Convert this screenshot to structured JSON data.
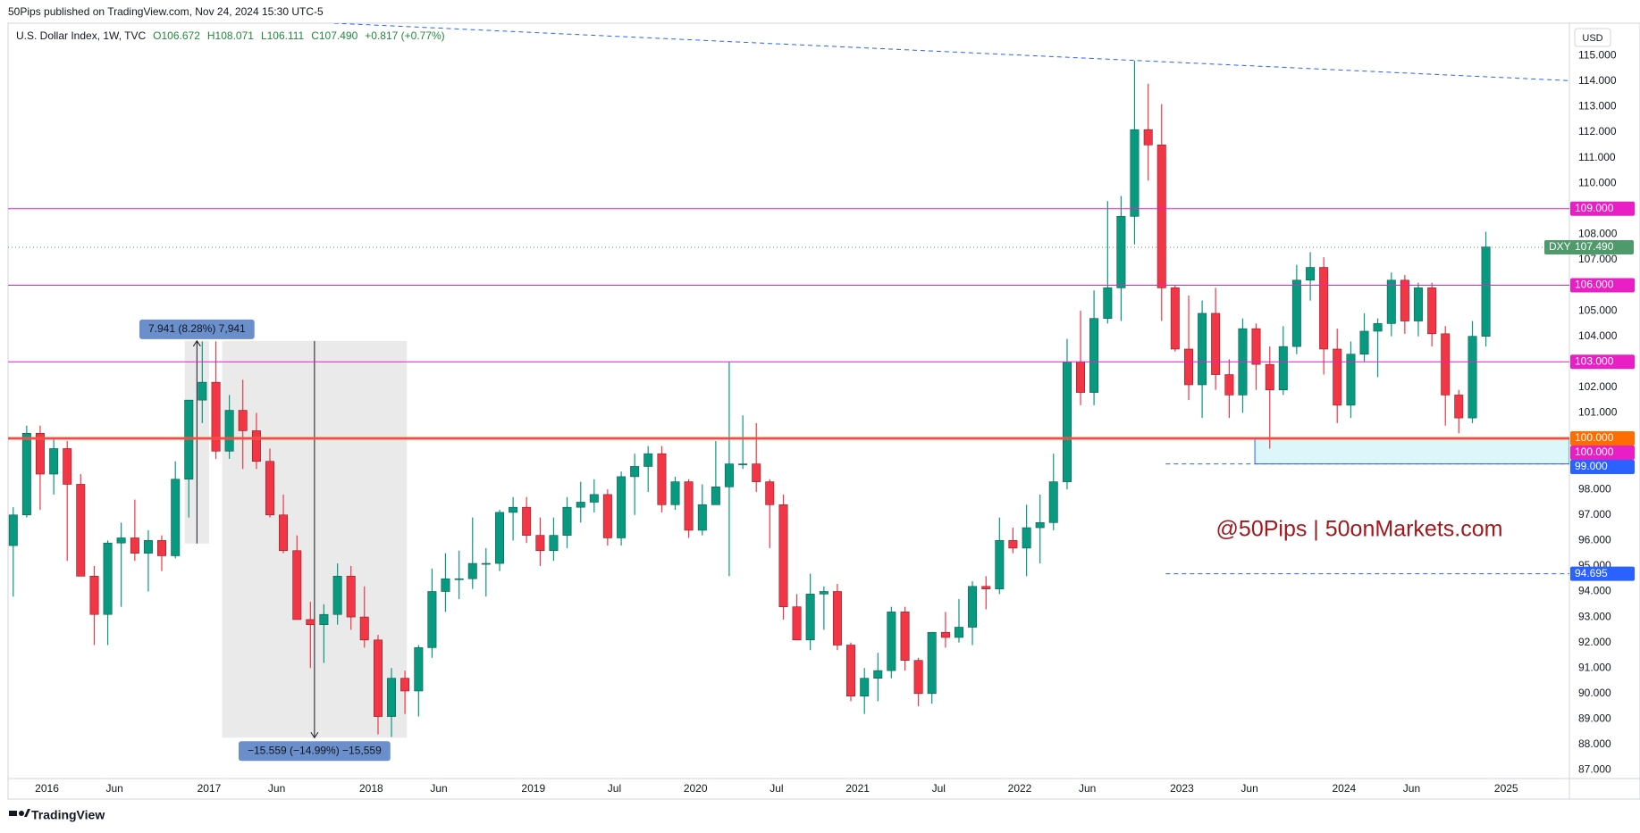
{
  "header": "50Pips published on TradingView.com, Nov 24, 2024 15:30 UTC-5",
  "legend": {
    "symbol": "U.S. Dollar Index, 1W, TVC",
    "ohlc": [
      "O106.672",
      "H108.071",
      "L106.111",
      "C107.490",
      "+0.817 (+0.77%)"
    ]
  },
  "currency": "USD",
  "watermark": "@50Pips | 50onMarkets.com",
  "brand": "TradingView",
  "chart_data": {
    "type": "candlestick",
    "xlim": [
      2015.76,
      2025.39
    ],
    "ylim": [
      86.67,
      116.27
    ],
    "grid": false,
    "up_color": "#089981",
    "down_color": "#f23645",
    "xticks": [
      {
        "value": 2016,
        "label": "2016"
      },
      {
        "value": 2016.417,
        "label": "Jun"
      },
      {
        "value": 2017,
        "label": "2017"
      },
      {
        "value": 2017.417,
        "label": "Jun"
      },
      {
        "value": 2018,
        "label": "2018"
      },
      {
        "value": 2018.417,
        "label": "Jun"
      },
      {
        "value": 2019,
        "label": "2019"
      },
      {
        "value": 2019.5,
        "label": "Jul"
      },
      {
        "value": 2020,
        "label": "2020"
      },
      {
        "value": 2020.5,
        "label": "Jul"
      },
      {
        "value": 2021,
        "label": "2021"
      },
      {
        "value": 2021.5,
        "label": "Jul"
      },
      {
        "value": 2022,
        "label": "2022"
      },
      {
        "value": 2022.417,
        "label": "Jun"
      },
      {
        "value": 2023,
        "label": "2023"
      },
      {
        "value": 2023.417,
        "label": "Jun"
      },
      {
        "value": 2024,
        "label": "2024"
      },
      {
        "value": 2024.417,
        "label": "Jun"
      },
      {
        "value": 2025,
        "label": "2025"
      }
    ],
    "yticks": [
      {
        "value": 87,
        "label": "87.000"
      },
      {
        "value": 88,
        "label": "88.000"
      },
      {
        "value": 89,
        "label": "89.000"
      },
      {
        "value": 90,
        "label": "90.000"
      },
      {
        "value": 91,
        "label": "91.000"
      },
      {
        "value": 92,
        "label": "92.000"
      },
      {
        "value": 93,
        "label": "93.000"
      },
      {
        "value": 94,
        "label": "94.000"
      },
      {
        "value": 95,
        "label": "95.000"
      },
      {
        "value": 96,
        "label": "96.000"
      },
      {
        "value": 97,
        "label": "97.000"
      },
      {
        "value": 98,
        "label": "98.000"
      },
      {
        "value": 99,
        "label": "99.000"
      },
      {
        "value": 100,
        "label": "100.000"
      },
      {
        "value": 101,
        "label": "101.000"
      },
      {
        "value": 102,
        "label": "102.000"
      },
      {
        "value": 103,
        "label": "103.000"
      },
      {
        "value": 104,
        "label": "104.000"
      },
      {
        "value": 105,
        "label": "105.000"
      },
      {
        "value": 106,
        "label": "106.000"
      },
      {
        "value": 107,
        "label": "107.000"
      },
      {
        "value": 108,
        "label": "108.000"
      },
      {
        "value": 109,
        "label": "109.000"
      },
      {
        "value": 110,
        "label": "110.000"
      },
      {
        "value": 111,
        "label": "111.000"
      },
      {
        "value": 112,
        "label": "112.000"
      },
      {
        "value": 113,
        "label": "113.000"
      },
      {
        "value": 114,
        "label": "114.000"
      },
      {
        "value": 115,
        "label": "115.000"
      }
    ],
    "series": [
      {
        "x": [
          2015.792,
          2015.875,
          2015.958,
          2016.042,
          2016.125,
          2016.208,
          2016.292,
          2016.375,
          2016.458,
          2016.542,
          2016.625,
          2016.708,
          2016.792,
          2016.875,
          2016.958,
          2017.042,
          2017.125,
          2017.208,
          2017.292,
          2017.375,
          2017.458,
          2017.542,
          2017.625,
          2017.708,
          2017.792,
          2017.875,
          2017.958,
          2018.042,
          2018.125,
          2018.208,
          2018.292,
          2018.375,
          2018.458,
          2018.542,
          2018.625,
          2018.708,
          2018.792,
          2018.875,
          2018.958,
          2019.042,
          2019.125,
          2019.208,
          2019.292,
          2019.375,
          2019.458,
          2019.542,
          2019.625,
          2019.708,
          2019.792,
          2019.875,
          2019.958,
          2020.042,
          2020.125,
          2020.208,
          2020.292,
          2020.375,
          2020.458,
          2020.542,
          2020.625,
          2020.708,
          2020.792,
          2020.875,
          2020.958,
          2021.042,
          2021.125,
          2021.208,
          2021.292,
          2021.375,
          2021.458,
          2021.542,
          2021.625,
          2021.708,
          2021.792,
          2021.875,
          2021.958,
          2022.042,
          2022.125,
          2022.208,
          2022.292,
          2022.375,
          2022.458,
          2022.542,
          2022.625,
          2022.708,
          2022.792,
          2022.875,
          2022.958,
          2023.042,
          2023.125,
          2023.208,
          2023.292,
          2023.375,
          2023.458,
          2023.542,
          2023.625,
          2023.708,
          2023.792,
          2023.875,
          2023.958,
          2024.042,
          2024.125,
          2024.208,
          2024.292,
          2024.375,
          2024.458,
          2024.542,
          2024.625,
          2024.708,
          2024.792,
          2024.875
        ],
        "open": [
          95.8,
          97.0,
          100.2,
          98.6,
          99.6,
          98.2,
          94.6,
          93.1,
          95.9,
          96.1,
          95.5,
          96.0,
          95.4,
          98.4,
          101.5,
          102.2,
          99.5,
          101.1,
          100.3,
          99.1,
          97.0,
          95.6,
          92.9,
          92.7,
          93.1,
          94.6,
          93.0,
          92.1,
          89.1,
          90.6,
          90.1,
          91.8,
          94.0,
          94.5,
          94.5,
          95.1,
          95.1,
          97.1,
          97.3,
          96.2,
          95.6,
          96.2,
          97.3,
          97.5,
          97.8,
          96.1,
          98.5,
          98.9,
          99.4,
          97.4,
          98.3,
          96.4,
          97.4,
          98.1,
          99.0,
          99.0,
          98.3,
          97.4,
          93.4,
          92.1,
          93.9,
          94.0,
          91.9,
          89.9,
          90.6,
          90.9,
          93.2,
          91.3,
          90.0,
          92.4,
          92.2,
          92.6,
          94.2,
          94.1,
          96.0,
          95.7,
          96.5,
          96.7,
          98.3,
          103.0,
          101.8,
          104.7,
          105.9,
          108.7,
          112.1,
          111.5,
          105.9,
          103.5,
          102.1,
          104.9,
          102.5,
          101.7,
          104.3,
          102.9,
          101.9,
          103.6,
          106.2,
          106.7,
          103.5,
          101.3,
          103.3,
          104.2,
          104.5,
          106.2,
          104.6,
          105.9,
          104.1,
          101.7,
          100.8,
          104.0
        ],
        "high": [
          97.3,
          100.5,
          100.5,
          100.0,
          99.9,
          98.6,
          95.0,
          96.0,
          96.7,
          97.6,
          96.4,
          96.2,
          99.1,
          101.5,
          103.8,
          103.8,
          101.7,
          102.3,
          101.0,
          99.6,
          97.8,
          96.2,
          93.6,
          93.5,
          95.1,
          95.0,
          94.2,
          92.3,
          91.0,
          90.9,
          91.9,
          94.9,
          95.5,
          95.6,
          96.9,
          95.7,
          97.2,
          97.7,
          97.7,
          96.9,
          96.9,
          97.7,
          98.3,
          98.4,
          98.0,
          98.7,
          99.4,
          99.7,
          99.7,
          98.5,
          98.4,
          98.2,
          99.9,
          103.0,
          100.9,
          100.6,
          98.4,
          97.8,
          93.9,
          94.7,
          94.2,
          94.3,
          92.0,
          91.0,
          91.6,
          93.4,
          93.4,
          91.4,
          92.4,
          93.2,
          93.7,
          94.4,
          94.6,
          96.9,
          96.5,
          97.4,
          97.8,
          99.4,
          103.9,
          105.0,
          105.8,
          109.3,
          109.5,
          114.8,
          113.9,
          113.1,
          106.0,
          105.6,
          105.4,
          105.9,
          103.1,
          104.7,
          104.5,
          103.6,
          104.4,
          106.8,
          107.3,
          107.1,
          104.3,
          103.8,
          104.9,
          104.7,
          106.5,
          106.4,
          106.1,
          106.1,
          104.4,
          101.9,
          104.6,
          108.1
        ],
        "low": [
          93.8,
          96.9,
          97.2,
          97.8,
          95.2,
          94.6,
          91.9,
          91.9,
          93.4,
          95.2,
          94.0,
          94.8,
          95.3,
          96.9,
          100.6,
          99.2,
          99.2,
          98.8,
          98.8,
          96.9,
          95.5,
          92.9,
          91.0,
          91.2,
          92.7,
          92.5,
          91.8,
          88.4,
          88.3,
          89.2,
          89.1,
          91.4,
          93.2,
          93.7,
          94.1,
          93.8,
          94.8,
          96.0,
          95.9,
          95.0,
          95.2,
          95.7,
          96.7,
          97.1,
          95.8,
          95.8,
          97.0,
          97.9,
          97.1,
          97.2,
          96.1,
          96.2,
          97.4,
          94.6,
          98.8,
          97.9,
          95.7,
          92.9,
          92.1,
          91.7,
          92.5,
          91.7,
          89.7,
          89.2,
          89.7,
          90.6,
          90.9,
          89.5,
          89.6,
          91.8,
          92.0,
          91.9,
          93.3,
          93.9,
          95.5,
          94.6,
          95.1,
          96.4,
          98.0,
          101.3,
          101.3,
          104.5,
          104.6,
          107.6,
          110.1,
          104.6,
          103.4,
          101.5,
          100.8,
          101.9,
          100.8,
          101.0,
          101.9,
          99.6,
          101.7,
          103.3,
          105.4,
          102.5,
          100.6,
          100.8,
          103.0,
          102.4,
          104.0,
          104.1,
          104.0,
          103.6,
          100.5,
          100.2,
          100.6,
          103.6
        ],
        "close": [
          97.0,
          100.2,
          98.6,
          99.6,
          98.2,
          94.6,
          93.1,
          95.9,
          96.1,
          95.5,
          96.0,
          95.4,
          98.4,
          101.5,
          102.2,
          99.5,
          101.1,
          100.3,
          99.1,
          97.0,
          95.6,
          92.9,
          92.7,
          93.1,
          94.6,
          93.0,
          92.1,
          89.1,
          90.6,
          90.1,
          91.8,
          94.0,
          94.5,
          94.5,
          95.1,
          95.1,
          97.1,
          97.3,
          96.2,
          95.6,
          96.2,
          97.3,
          97.5,
          97.8,
          96.1,
          98.5,
          98.9,
          99.4,
          97.4,
          98.3,
          96.4,
          97.4,
          98.1,
          99.0,
          99.0,
          98.3,
          97.4,
          93.4,
          92.1,
          93.9,
          94.0,
          91.9,
          89.9,
          90.6,
          90.9,
          93.2,
          91.3,
          90.0,
          92.4,
          92.2,
          92.6,
          94.2,
          94.1,
          96.0,
          95.7,
          96.5,
          96.7,
          98.3,
          103.0,
          101.8,
          104.7,
          105.9,
          108.7,
          112.1,
          111.5,
          105.9,
          103.5,
          102.1,
          104.9,
          102.5,
          101.7,
          104.3,
          102.9,
          101.9,
          103.6,
          106.2,
          106.7,
          103.5,
          101.3,
          103.3,
          104.2,
          104.5,
          106.2,
          104.6,
          105.9,
          104.1,
          101.7,
          100.8,
          104.0,
          107.5
        ]
      }
    ],
    "levels": [
      {
        "value": 109,
        "label": "109.000",
        "color": "#e91ec4",
        "style": "solid"
      },
      {
        "value": 106,
        "label": "106.000",
        "color": "#e91ec4",
        "style": "solid"
      },
      {
        "value": 103,
        "label": "103.000",
        "color": "#e91ec4",
        "style": "solid"
      },
      {
        "value": 100,
        "label": "100.000",
        "color": "#ff6d00",
        "style": "thick"
      },
      {
        "value": 100,
        "label": "100.000",
        "color": "#e91ec4",
        "style": "solid"
      },
      {
        "value": 99,
        "label": "99.000",
        "color": "#2962ff",
        "style": "dashed",
        "from": 2022.9
      },
      {
        "value": 94.695,
        "label": "94.695",
        "color": "#2962ff",
        "style": "dashed",
        "from": 2022.9
      }
    ],
    "zone": {
      "x0": 2023.45,
      "top": 100,
      "bottom": 99,
      "color": "#b2ebf2"
    },
    "last": {
      "name": "DXY",
      "value": 107.49,
      "label": "107.490",
      "color": "#4f9a6b"
    },
    "trendline": {
      "x": [
        2017.77,
        2025.39
      ],
      "y": [
        116.27,
        114.02
      ],
      "color": "#2962ff"
    },
    "measures": [
      {
        "x0": 2016.85,
        "x1": 2017.0,
        "from": 95.88,
        "to": 103.82,
        "label": "7.941 (8.28%) 7,941"
      },
      {
        "x0": 2017.08,
        "x1": 2018.22,
        "from": 103.82,
        "to": 88.27,
        "label": "−15.559 (−14.99%) −15,559"
      }
    ]
  }
}
